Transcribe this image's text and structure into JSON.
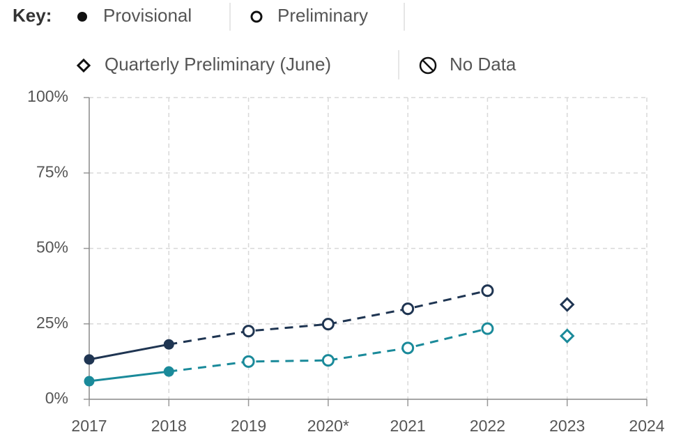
{
  "chart_data": {
    "type": "line",
    "key_title": "Key:",
    "legend": [
      {
        "label": "Provisional",
        "symbol": "filled"
      },
      {
        "label": "Preliminary",
        "symbol": "open"
      },
      {
        "label": "Quarterly Preliminary (June)",
        "symbol": "diamond"
      },
      {
        "label": "No Data",
        "symbol": "nodata"
      }
    ],
    "categories": [
      "2017",
      "2018",
      "2019",
      "2020*",
      "2021",
      "2022",
      "2023",
      "2024"
    ],
    "markers": [
      "filled",
      "filled",
      "open",
      "open",
      "open",
      "open",
      "diamond",
      null
    ],
    "series": [
      {
        "color": "#1f3552",
        "values": [
          13.2,
          18.2,
          22.6,
          24.9,
          30,
          36,
          31.4,
          null
        ]
      },
      {
        "color": "#1a8a9a",
        "values": [
          6,
          9.2,
          12.5,
          12.9,
          17,
          23.4,
          21,
          null
        ]
      }
    ],
    "ylim": [
      0,
      100
    ],
    "yticks": [
      {
        "value": 0,
        "label": "0%"
      },
      {
        "value": 25,
        "label": "25%"
      },
      {
        "value": 50,
        "label": "50%"
      },
      {
        "value": 75,
        "label": "75%"
      },
      {
        "value": 100,
        "label": "100%"
      }
    ],
    "grid": true
  }
}
